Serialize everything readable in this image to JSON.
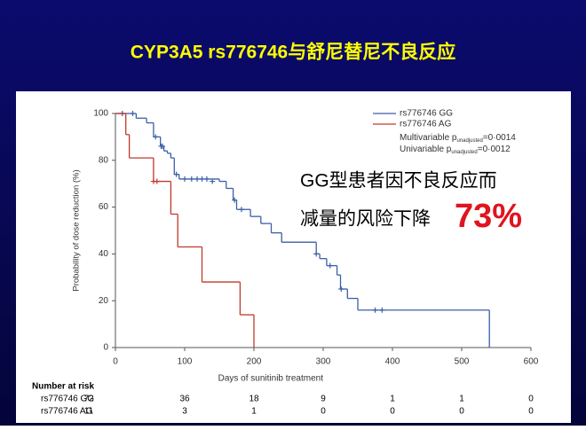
{
  "chart_data": {
    "type": "line",
    "step": true,
    "title": "CYP3A5 rs776746与舒尼替尼不良反应",
    "xlabel": "Days of sunitinib treatment",
    "ylabel": "Probability of dose reduction (%)",
    "xlim": [
      0,
      600
    ],
    "xticks": [
      0,
      100,
      200,
      300,
      400,
      500,
      600
    ],
    "ylim": [
      0,
      100
    ],
    "yticks": [
      0,
      20,
      40,
      60,
      80,
      100
    ],
    "legend": "top-right",
    "series": [
      {
        "name": "rs776746 GG",
        "color": "#3a5fa8",
        "x": [
          0,
          30,
          45,
          55,
          65,
          70,
          75,
          80,
          85,
          92,
          150,
          160,
          170,
          175,
          195,
          210,
          225,
          240,
          290,
          295,
          305,
          320,
          325,
          335,
          350,
          540
        ],
        "values": [
          100,
          98,
          96,
          90,
          86,
          84,
          83,
          81,
          74,
          72,
          71,
          68,
          63,
          59,
          56,
          53,
          49,
          45,
          40,
          38,
          35,
          31,
          25,
          21,
          16,
          0
        ],
        "censored_x": [
          10,
          25,
          58,
          66,
          68,
          88,
          100,
          110,
          118,
          125,
          132,
          140,
          172,
          182,
          290,
          310,
          326,
          375,
          385
        ],
        "censored_values": [
          100,
          100,
          90,
          86,
          86,
          74,
          72,
          72,
          72,
          72,
          72,
          71,
          63,
          59,
          40,
          35,
          25,
          16,
          16
        ]
      },
      {
        "name": "rs776746 AG",
        "color": "#c0392b",
        "x": [
          0,
          15,
          20,
          55,
          80,
          90,
          125,
          180,
          200
        ],
        "values": [
          100,
          91,
          81,
          71,
          57,
          43,
          28,
          14,
          0
        ],
        "censored_x": [
          55,
          60
        ],
        "censored_values": [
          71,
          71
        ]
      }
    ],
    "stats": [
      {
        "label": "Multivariable p",
        "subscript": "unadjusted",
        "value": "=0·0014"
      },
      {
        "label": "Univariable p",
        "subscript": "unadjusted",
        "value": "=0·0012"
      }
    ],
    "annotation": {
      "line1": "GG型患者因不良反应而",
      "line2": "减量的风险下降",
      "highlight": "73%"
    },
    "risk_table": {
      "title": "Number at risk",
      "rows": [
        {
          "name": "rs776746 GG",
          "values": [
            72,
            36,
            18,
            9,
            1,
            1,
            0
          ]
        },
        {
          "name": "rs776746 AG",
          "values": [
            11,
            3,
            1,
            0,
            0,
            0,
            0
          ]
        }
      ]
    }
  }
}
